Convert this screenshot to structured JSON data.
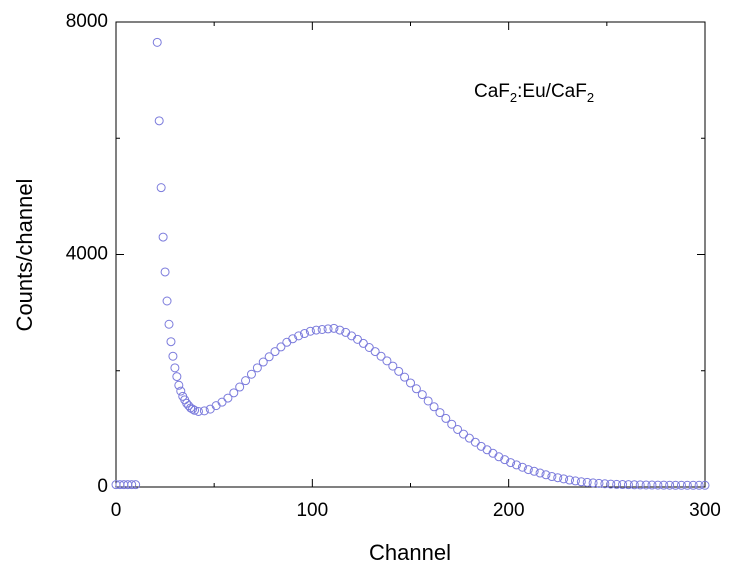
{
  "chart_data": {
    "type": "scatter",
    "xlabel": "Channel",
    "ylabel": "Counts/channel",
    "annotation": [
      "CaF",
      "2",
      ":Eu/CaF",
      "2"
    ],
    "xlim": [
      0,
      300
    ],
    "ylim": [
      0,
      8000
    ],
    "xticks": [
      0,
      100,
      200,
      300
    ],
    "yticks": [
      0,
      4000,
      8000
    ],
    "xminorticks": [
      50,
      150,
      250
    ],
    "yminorticks": [
      2000,
      6000
    ],
    "color": "#7b7bdc",
    "x": [
      0,
      2,
      4,
      6,
      8,
      10,
      21,
      22,
      23,
      24,
      25,
      26,
      27,
      28,
      29,
      30,
      31,
      32,
      33,
      34,
      35,
      36,
      37,
      38,
      39,
      40,
      42,
      45,
      48,
      51,
      54,
      57,
      60,
      63,
      66,
      69,
      72,
      75,
      78,
      81,
      84,
      87,
      90,
      93,
      96,
      99,
      102,
      105,
      108,
      111,
      114,
      117,
      120,
      123,
      126,
      129,
      132,
      135,
      138,
      141,
      144,
      147,
      150,
      153,
      156,
      159,
      162,
      165,
      168,
      171,
      174,
      177,
      180,
      183,
      186,
      189,
      192,
      195,
      198,
      201,
      204,
      207,
      210,
      213,
      216,
      219,
      222,
      225,
      228,
      231,
      234,
      237,
      240,
      243,
      246,
      249,
      252,
      255,
      258,
      261,
      264,
      267,
      270,
      273,
      276,
      279,
      282,
      285,
      288,
      291,
      294,
      297,
      300
    ],
    "values": [
      40,
      40,
      40,
      40,
      40,
      40,
      7650,
      6300,
      5150,
      4300,
      3700,
      3200,
      2800,
      2500,
      2250,
      2050,
      1900,
      1750,
      1650,
      1560,
      1500,
      1440,
      1400,
      1360,
      1340,
      1320,
      1300,
      1310,
      1340,
      1400,
      1460,
      1530,
      1620,
      1720,
      1830,
      1940,
      2050,
      2150,
      2240,
      2330,
      2410,
      2490,
      2550,
      2600,
      2640,
      2680,
      2700,
      2710,
      2720,
      2730,
      2700,
      2660,
      2600,
      2540,
      2470,
      2400,
      2330,
      2250,
      2170,
      2080,
      1990,
      1890,
      1790,
      1690,
      1590,
      1480,
      1380,
      1280,
      1180,
      1080,
      990,
      910,
      840,
      770,
      700,
      640,
      580,
      520,
      470,
      420,
      380,
      340,
      300,
      270,
      240,
      210,
      180,
      160,
      140,
      120,
      105,
      90,
      80,
      70,
      62,
      55,
      50,
      45,
      42,
      40,
      38,
      36,
      35,
      34,
      33,
      32,
      31,
      30,
      30,
      30,
      30,
      30,
      30
    ]
  }
}
